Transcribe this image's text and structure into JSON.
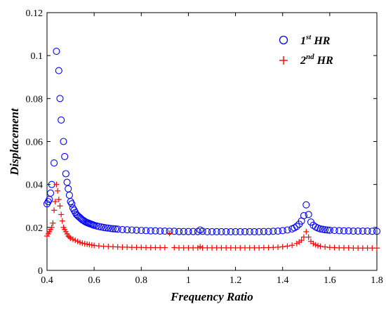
{
  "chart_data": {
    "type": "scatter",
    "xlabel": "Frequency Ratio",
    "ylabel": "Displacement",
    "xlim": [
      0.4,
      1.8
    ],
    "ylim": [
      0,
      0.12
    ],
    "xticks": [
      "0.4",
      "0.6",
      "0.8",
      "1",
      "1.2",
      "1.4",
      "1.6",
      "1.8"
    ],
    "yticks": [
      "0",
      "0.02",
      "0.04",
      "0.06",
      "0.08",
      "0.1",
      "0.12"
    ],
    "legend_position": "top-right",
    "grid": false,
    "series": [
      {
        "name_base": "1",
        "name_sup": "st",
        "name_suffix": " HR",
        "marker": "circle",
        "color": "#0000ff",
        "points": [
          [
            0.4,
            0.031
          ],
          [
            0.405,
            0.032
          ],
          [
            0.41,
            0.033
          ],
          [
            0.415,
            0.036
          ],
          [
            0.42,
            0.04
          ],
          [
            0.43,
            0.05
          ],
          [
            0.44,
            0.102
          ],
          [
            0.45,
            0.093
          ],
          [
            0.455,
            0.08
          ],
          [
            0.46,
            0.07
          ],
          [
            0.47,
            0.06
          ],
          [
            0.475,
            0.053
          ],
          [
            0.48,
            0.045
          ],
          [
            0.485,
            0.041
          ],
          [
            0.49,
            0.038
          ],
          [
            0.495,
            0.035
          ],
          [
            0.5,
            0.032
          ],
          [
            0.505,
            0.031
          ],
          [
            0.51,
            0.029
          ],
          [
            0.515,
            0.028
          ],
          [
            0.52,
            0.027
          ],
          [
            0.525,
            0.026
          ],
          [
            0.53,
            0.0255
          ],
          [
            0.535,
            0.025
          ],
          [
            0.54,
            0.0245
          ],
          [
            0.545,
            0.024
          ],
          [
            0.55,
            0.0235
          ],
          [
            0.555,
            0.0232
          ],
          [
            0.56,
            0.0228
          ],
          [
            0.565,
            0.0225
          ],
          [
            0.57,
            0.0222
          ],
          [
            0.575,
            0.022
          ],
          [
            0.58,
            0.0218
          ],
          [
            0.585,
            0.0216
          ],
          [
            0.59,
            0.0214
          ],
          [
            0.595,
            0.0212
          ],
          [
            0.6,
            0.021
          ],
          [
            0.61,
            0.0207
          ],
          [
            0.62,
            0.0204
          ],
          [
            0.63,
            0.0202
          ],
          [
            0.64,
            0.02
          ],
          [
            0.65,
            0.0198
          ],
          [
            0.66,
            0.0197
          ],
          [
            0.67,
            0.0195
          ],
          [
            0.68,
            0.0194
          ],
          [
            0.69,
            0.0193
          ],
          [
            0.7,
            0.0192
          ],
          [
            0.72,
            0.019
          ],
          [
            0.74,
            0.0189
          ],
          [
            0.76,
            0.0188
          ],
          [
            0.78,
            0.0187
          ],
          [
            0.8,
            0.0186
          ],
          [
            0.82,
            0.0185
          ],
          [
            0.84,
            0.0184
          ],
          [
            0.86,
            0.0184
          ],
          [
            0.88,
            0.0183
          ],
          [
            0.9,
            0.0183
          ],
          [
            0.92,
            0.0182
          ],
          [
            0.94,
            0.0182
          ],
          [
            0.96,
            0.0181
          ],
          [
            0.98,
            0.0181
          ],
          [
            1.0,
            0.0181
          ],
          [
            1.02,
            0.0181
          ],
          [
            1.04,
            0.0181
          ],
          [
            1.05,
            0.0188
          ],
          [
            1.06,
            0.0182
          ],
          [
            1.08,
            0.018
          ],
          [
            1.1,
            0.018
          ],
          [
            1.12,
            0.018
          ],
          [
            1.14,
            0.018
          ],
          [
            1.16,
            0.018
          ],
          [
            1.18,
            0.018
          ],
          [
            1.2,
            0.018
          ],
          [
            1.22,
            0.018
          ],
          [
            1.24,
            0.018
          ],
          [
            1.26,
            0.018
          ],
          [
            1.28,
            0.018
          ],
          [
            1.3,
            0.018
          ],
          [
            1.32,
            0.0181
          ],
          [
            1.34,
            0.0181
          ],
          [
            1.36,
            0.0182
          ],
          [
            1.38,
            0.0183
          ],
          [
            1.4,
            0.0185
          ],
          [
            1.42,
            0.0188
          ],
          [
            1.44,
            0.0193
          ],
          [
            1.45,
            0.0198
          ],
          [
            1.46,
            0.0205
          ],
          [
            1.47,
            0.0215
          ],
          [
            1.48,
            0.023
          ],
          [
            1.49,
            0.0255
          ],
          [
            1.5,
            0.0305
          ],
          [
            1.51,
            0.026
          ],
          [
            1.52,
            0.0225
          ],
          [
            1.53,
            0.021
          ],
          [
            1.54,
            0.0202
          ],
          [
            1.55,
            0.0197
          ],
          [
            1.56,
            0.0193
          ],
          [
            1.57,
            0.0191
          ],
          [
            1.58,
            0.0189
          ],
          [
            1.59,
            0.0188
          ],
          [
            1.6,
            0.0187
          ],
          [
            1.62,
            0.0186
          ],
          [
            1.64,
            0.0185
          ],
          [
            1.66,
            0.0184
          ],
          [
            1.68,
            0.0184
          ],
          [
            1.7,
            0.0183
          ],
          [
            1.72,
            0.0183
          ],
          [
            1.74,
            0.0183
          ],
          [
            1.76,
            0.0183
          ],
          [
            1.78,
            0.0182
          ],
          [
            1.8,
            0.0182
          ]
        ]
      },
      {
        "name_base": "2",
        "name_sup": "nd",
        "name_suffix": " HR",
        "marker": "plus",
        "color": "#ff0000",
        "points": [
          [
            0.4,
            0.016
          ],
          [
            0.405,
            0.017
          ],
          [
            0.41,
            0.018
          ],
          [
            0.415,
            0.019
          ],
          [
            0.42,
            0.02
          ],
          [
            0.425,
            0.022
          ],
          [
            0.43,
            0.028
          ],
          [
            0.435,
            0.032
          ],
          [
            0.44,
            0.04
          ],
          [
            0.445,
            0.037
          ],
          [
            0.45,
            0.033
          ],
          [
            0.455,
            0.03
          ],
          [
            0.46,
            0.026
          ],
          [
            0.465,
            0.023
          ],
          [
            0.47,
            0.02
          ],
          [
            0.475,
            0.019
          ],
          [
            0.48,
            0.018
          ],
          [
            0.485,
            0.017
          ],
          [
            0.49,
            0.016
          ],
          [
            0.495,
            0.0155
          ],
          [
            0.5,
            0.015
          ],
          [
            0.51,
            0.0145
          ],
          [
            0.52,
            0.014
          ],
          [
            0.53,
            0.0135
          ],
          [
            0.54,
            0.013
          ],
          [
            0.55,
            0.0127
          ],
          [
            0.56,
            0.0124
          ],
          [
            0.57,
            0.0122
          ],
          [
            0.58,
            0.012
          ],
          [
            0.59,
            0.0118
          ],
          [
            0.6,
            0.0116
          ],
          [
            0.62,
            0.0114
          ],
          [
            0.64,
            0.0112
          ],
          [
            0.66,
            0.0111
          ],
          [
            0.68,
            0.011
          ],
          [
            0.7,
            0.0109
          ],
          [
            0.72,
            0.0108
          ],
          [
            0.74,
            0.0108
          ],
          [
            0.76,
            0.0107
          ],
          [
            0.78,
            0.0107
          ],
          [
            0.8,
            0.0107
          ],
          [
            0.82,
            0.0106
          ],
          [
            0.84,
            0.0106
          ],
          [
            0.86,
            0.0106
          ],
          [
            0.88,
            0.0106
          ],
          [
            0.9,
            0.0106
          ],
          [
            0.92,
            0.0172
          ],
          [
            0.94,
            0.0106
          ],
          [
            0.96,
            0.0105
          ],
          [
            0.98,
            0.0105
          ],
          [
            1.0,
            0.0105
          ],
          [
            1.02,
            0.0105
          ],
          [
            1.04,
            0.0105
          ],
          [
            1.05,
            0.011
          ],
          [
            1.06,
            0.0105
          ],
          [
            1.08,
            0.0105
          ],
          [
            1.1,
            0.0105
          ],
          [
            1.12,
            0.0105
          ],
          [
            1.14,
            0.0105
          ],
          [
            1.16,
            0.0105
          ],
          [
            1.18,
            0.0105
          ],
          [
            1.2,
            0.0105
          ],
          [
            1.22,
            0.0105
          ],
          [
            1.24,
            0.0105
          ],
          [
            1.26,
            0.0105
          ],
          [
            1.28,
            0.0105
          ],
          [
            1.3,
            0.0105
          ],
          [
            1.32,
            0.0106
          ],
          [
            1.34,
            0.0106
          ],
          [
            1.36,
            0.0107
          ],
          [
            1.38,
            0.0108
          ],
          [
            1.4,
            0.011
          ],
          [
            1.42,
            0.0113
          ],
          [
            1.44,
            0.0117
          ],
          [
            1.46,
            0.0125
          ],
          [
            1.47,
            0.0132
          ],
          [
            1.48,
            0.014
          ],
          [
            1.49,
            0.0155
          ],
          [
            1.5,
            0.018
          ],
          [
            1.51,
            0.0155
          ],
          [
            1.52,
            0.0135
          ],
          [
            1.53,
            0.0125
          ],
          [
            1.54,
            0.0119
          ],
          [
            1.55,
            0.0115
          ],
          [
            1.56,
            0.0112
          ],
          [
            1.58,
            0.0109
          ],
          [
            1.6,
            0.0107
          ],
          [
            1.62,
            0.0106
          ],
          [
            1.64,
            0.0105
          ],
          [
            1.66,
            0.0105
          ],
          [
            1.68,
            0.0105
          ],
          [
            1.7,
            0.0104
          ],
          [
            1.72,
            0.0104
          ],
          [
            1.74,
            0.0104
          ],
          [
            1.76,
            0.0104
          ],
          [
            1.78,
            0.0104
          ],
          [
            1.8,
            0.0104
          ]
        ]
      }
    ]
  }
}
